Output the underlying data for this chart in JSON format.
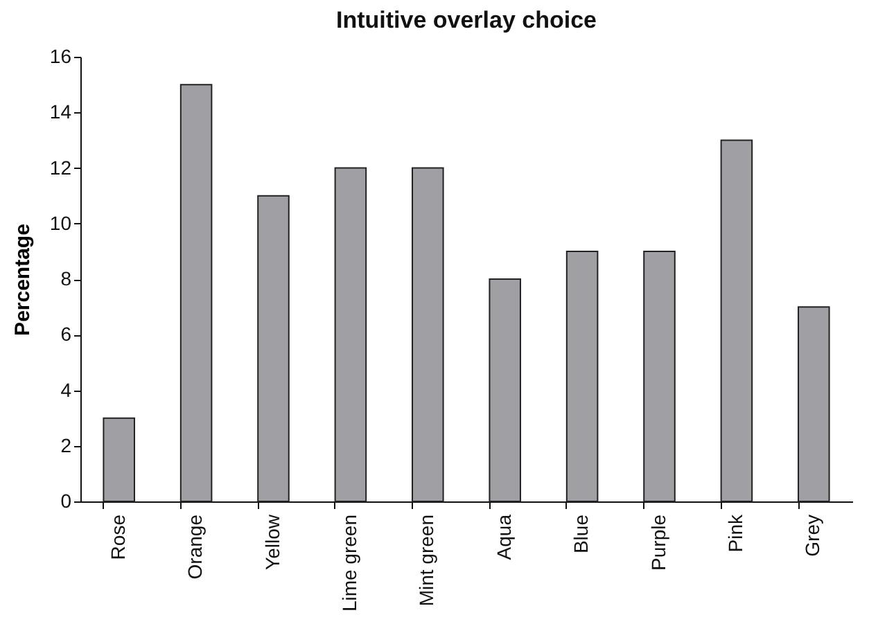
{
  "chart_data": {
    "type": "bar",
    "title": "Intuitive overlay choice",
    "ylabel": "Percentage",
    "categories": [
      "Rose",
      "Orange",
      "Yellow",
      "Lime green",
      "Mint green",
      "Aqua",
      "Blue",
      "Purple",
      "Pink",
      "Grey"
    ],
    "values": [
      3,
      15,
      11,
      12,
      12,
      8,
      9,
      9,
      13,
      7
    ],
    "color": "#a0a0a4",
    "ylim": [
      0,
      16
    ],
    "yticks": [
      0,
      2,
      4,
      6,
      8,
      10,
      12,
      14,
      16
    ],
    "grid": false
  }
}
